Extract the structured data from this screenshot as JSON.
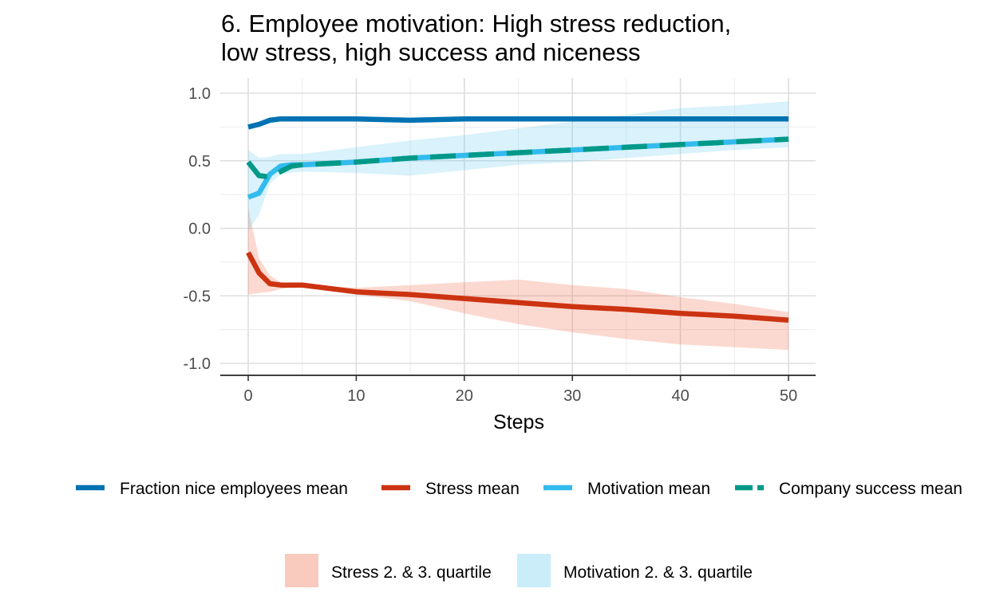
{
  "title_lines": [
    "6. Employee motivation: High stress reduction,",
    "low stress, high success and niceness"
  ],
  "chart_data": {
    "type": "line",
    "title": "6. Employee motivation: High stress reduction, low stress, high success and niceness",
    "xlabel": "Steps",
    "ylabel": "",
    "xlim": [
      0,
      50
    ],
    "ylim": [
      -1.0,
      1.0
    ],
    "x_ticks": [
      0,
      10,
      20,
      30,
      40,
      50
    ],
    "y_ticks": [
      1.0,
      0.5,
      0.0,
      -0.5,
      -1.0
    ],
    "y_tick_labels": [
      "1.0",
      "0.5",
      "0.0",
      "-0.5",
      "-1.0"
    ],
    "grid": true,
    "legend_position": "bottom",
    "x": [
      0,
      1,
      2,
      3,
      4,
      5,
      10,
      15,
      20,
      25,
      30,
      35,
      40,
      45,
      50
    ],
    "series": [
      {
        "name": "Fraction nice employees mean",
        "color": "#0072B2",
        "style": "solid",
        "values": [
          0.75,
          0.77,
          0.8,
          0.81,
          0.81,
          0.81,
          0.81,
          0.8,
          0.81,
          0.81,
          0.81,
          0.81,
          0.81,
          0.81,
          0.81
        ]
      },
      {
        "name": "Stress mean",
        "color": "#CC3311",
        "style": "solid",
        "values": [
          -0.18,
          -0.33,
          -0.41,
          -0.42,
          -0.42,
          -0.42,
          -0.47,
          -0.49,
          -0.52,
          -0.55,
          -0.58,
          -0.6,
          -0.63,
          -0.65,
          -0.68
        ]
      },
      {
        "name": "Motivation mean",
        "color": "#33BBEE",
        "style": "solid",
        "values": [
          0.23,
          0.26,
          0.4,
          0.46,
          0.47,
          0.47,
          0.49,
          0.52,
          0.54,
          0.56,
          0.58,
          0.6,
          0.62,
          0.64,
          0.66
        ]
      },
      {
        "name": "Company success mean",
        "color": "#009988",
        "style": "dashed",
        "values": [
          0.49,
          0.39,
          0.38,
          0.42,
          0.46,
          0.47,
          0.49,
          0.52,
          0.54,
          0.56,
          0.58,
          0.6,
          0.62,
          0.64,
          0.66
        ]
      }
    ],
    "bands": [
      {
        "name": "Stress 2. & 3. quartile",
        "color": "#EE6644",
        "opacity": 0.25,
        "lower": [
          -0.49,
          -0.48,
          -0.47,
          -0.45,
          -0.44,
          -0.44,
          -0.49,
          -0.54,
          -0.63,
          -0.71,
          -0.77,
          -0.82,
          -0.86,
          -0.88,
          -0.9
        ],
        "upper": [
          0.15,
          -0.22,
          -0.35,
          -0.4,
          -0.41,
          -0.42,
          -0.44,
          -0.42,
          -0.4,
          -0.38,
          -0.42,
          -0.45,
          -0.51,
          -0.56,
          -0.62
        ]
      },
      {
        "name": "Motivation 2. & 3. quartile",
        "color": "#66CCEE",
        "opacity": 0.25,
        "lower": [
          -0.02,
          0.1,
          0.33,
          0.4,
          0.41,
          0.42,
          0.41,
          0.39,
          0.43,
          0.47,
          0.49,
          0.52,
          0.55,
          0.58,
          0.6
        ],
        "upper": [
          0.58,
          0.52,
          0.53,
          0.55,
          0.55,
          0.55,
          0.6,
          0.65,
          0.69,
          0.74,
          0.79,
          0.84,
          0.89,
          0.91,
          0.94
        ]
      }
    ]
  }
}
